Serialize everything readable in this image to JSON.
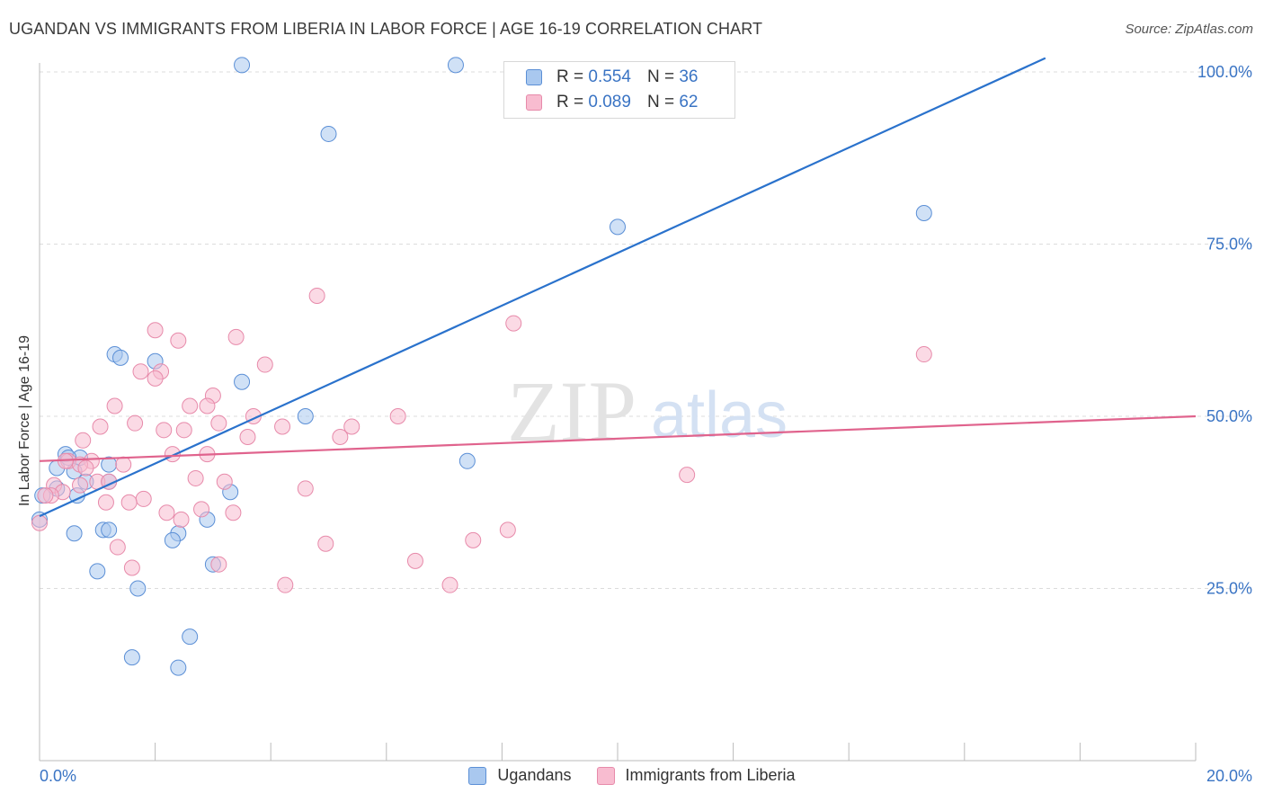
{
  "title": "UGANDAN VS IMMIGRANTS FROM LIBERIA IN LABOR FORCE | AGE 16-19 CORRELATION CHART",
  "source": "Source: ZipAtlas.com",
  "watermark": {
    "zip": "ZIP",
    "atlas": "atlas"
  },
  "legend": {
    "r_label": "R =",
    "n_label": "N =",
    "rows": [
      {
        "r": "0.554",
        "n": "36",
        "color": "#a9c8ef",
        "border": "#5b8fd6"
      },
      {
        "r": "0.089",
        "n": "62",
        "color": "#f8bcd0",
        "border": "#e78aaa"
      }
    ]
  },
  "bottom_legend": [
    "Ugandans",
    "Immigrants from Liberia"
  ],
  "chart_data": {
    "type": "scatter",
    "title": "UGANDAN VS IMMIGRANTS FROM LIBERIA IN LABOR FORCE | AGE 16-19 CORRELATION CHART",
    "xlabel": "",
    "ylabel": "In Labor Force | Age 16-19",
    "xlim": [
      0,
      20
    ],
    "ylim": [
      0,
      103
    ],
    "x_tick_labels": [
      "0.0%",
      "20.0%"
    ],
    "y_ticks": [
      25,
      50,
      75,
      100
    ],
    "y_tick_labels": [
      "25.0%",
      "50.0%",
      "75.0%",
      "100.0%"
    ],
    "grid": true,
    "series": [
      {
        "name": "Ugandans",
        "color": "#a9c8ef",
        "stroke": "#5b8fd6",
        "line_color": "#2a72cc",
        "trend": {
          "x": [
            0,
            17.4
          ],
          "y": [
            35.5,
            102
          ]
        },
        "points": [
          [
            3.5,
            101
          ],
          [
            7.2,
            101
          ],
          [
            5.0,
            91
          ],
          [
            10.0,
            77.5
          ],
          [
            15.3,
            79.5
          ],
          [
            1.3,
            59
          ],
          [
            1.4,
            58.5
          ],
          [
            2.0,
            58
          ],
          [
            3.5,
            55
          ],
          [
            4.6,
            50
          ],
          [
            7.4,
            43.5
          ],
          [
            0.45,
            44.5
          ],
          [
            0.7,
            44
          ],
          [
            0.3,
            42.5
          ],
          [
            0.5,
            44
          ],
          [
            1.2,
            43
          ],
          [
            0.6,
            42
          ],
          [
            0.8,
            40.5
          ],
          [
            1.2,
            40.5
          ],
          [
            0.3,
            39.5
          ],
          [
            0.65,
            38.5
          ],
          [
            3.3,
            39
          ],
          [
            2.9,
            35
          ],
          [
            1.1,
            33.5
          ],
          [
            1.2,
            33.5
          ],
          [
            2.4,
            33
          ],
          [
            0.6,
            33
          ],
          [
            2.3,
            32
          ],
          [
            1.0,
            27.5
          ],
          [
            3.0,
            28.5
          ],
          [
            1.7,
            25
          ],
          [
            2.6,
            18
          ],
          [
            1.6,
            15
          ],
          [
            2.4,
            13.5
          ],
          [
            0.0,
            35
          ],
          [
            0.05,
            38.5
          ]
        ]
      },
      {
        "name": "Immigrants from Liberia",
        "color": "#f8bcd0",
        "stroke": "#e78aaa",
        "line_color": "#e0638d",
        "trend": {
          "x": [
            0,
            20
          ],
          "y": [
            43.5,
            50
          ]
        },
        "points": [
          [
            4.8,
            67.5
          ],
          [
            2.0,
            62.5
          ],
          [
            3.4,
            61.5
          ],
          [
            2.4,
            61
          ],
          [
            8.2,
            63.5
          ],
          [
            15.3,
            59
          ],
          [
            2.1,
            56.5
          ],
          [
            3.9,
            57.5
          ],
          [
            1.75,
            56.5
          ],
          [
            2.0,
            55.5
          ],
          [
            3.0,
            53
          ],
          [
            1.3,
            51.5
          ],
          [
            2.9,
            51.5
          ],
          [
            2.6,
            51.5
          ],
          [
            6.2,
            50
          ],
          [
            3.7,
            50
          ],
          [
            3.1,
            49
          ],
          [
            1.65,
            49
          ],
          [
            4.2,
            48.5
          ],
          [
            1.05,
            48.5
          ],
          [
            5.4,
            48.5
          ],
          [
            2.15,
            48
          ],
          [
            2.5,
            48
          ],
          [
            3.6,
            47
          ],
          [
            5.2,
            47
          ],
          [
            0.75,
            46.5
          ],
          [
            2.3,
            44.5
          ],
          [
            2.9,
            44.5
          ],
          [
            0.5,
            43.5
          ],
          [
            0.9,
            43.5
          ],
          [
            1.45,
            43
          ],
          [
            0.7,
            43
          ],
          [
            0.8,
            42.5
          ],
          [
            11.2,
            41.5
          ],
          [
            2.7,
            41
          ],
          [
            1.0,
            40.5
          ],
          [
            1.2,
            40.5
          ],
          [
            3.2,
            40.5
          ],
          [
            0.25,
            40
          ],
          [
            0.7,
            40
          ],
          [
            4.6,
            39.5
          ],
          [
            0.4,
            39
          ],
          [
            0.2,
            38.5
          ],
          [
            1.8,
            38
          ],
          [
            1.15,
            37.5
          ],
          [
            1.55,
            37.5
          ],
          [
            2.8,
            36.5
          ],
          [
            3.35,
            36
          ],
          [
            2.2,
            36
          ],
          [
            2.45,
            35
          ],
          [
            8.1,
            33.5
          ],
          [
            7.5,
            32
          ],
          [
            1.35,
            31
          ],
          [
            4.95,
            31.5
          ],
          [
            6.5,
            29
          ],
          [
            1.6,
            28
          ],
          [
            3.1,
            28.5
          ],
          [
            4.25,
            25.5
          ],
          [
            7.1,
            25.5
          ],
          [
            0.0,
            34.5
          ],
          [
            0.1,
            38.5
          ],
          [
            0.45,
            43.5
          ]
        ]
      }
    ]
  }
}
